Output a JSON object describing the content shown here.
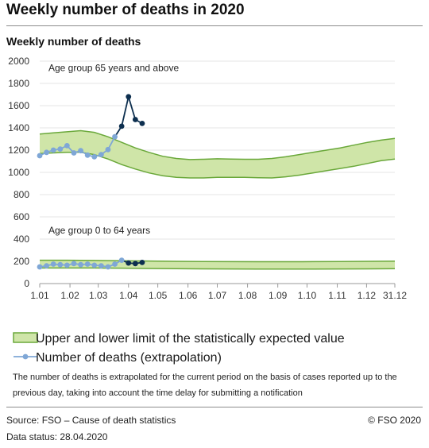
{
  "title": "Weekly number of deaths in 2020",
  "subtitle": "Weekly number of deaths",
  "legend": {
    "band_label": "Upper and lower limit of the statistically expected value",
    "series_label": "Number of deaths (extrapolation)"
  },
  "note": "The number of deaths is extrapolated for the current period on the basis of cases reported up to the previous day, taking into account the time delay for submitting a notification",
  "source": "Source: FSO – Cause of death statistics",
  "copyright": "© FSO 2020",
  "data_status": "Data status: 28.04.2020",
  "colors": {
    "band_fill": "#cfe5a8",
    "band_line": "#6aa83a",
    "series_light": "#7fa7d6",
    "series_dark": "#0d2f4f",
    "grid": "#e6e6e6"
  },
  "chart_data": {
    "type": "line",
    "ylim": [
      0,
      2000
    ],
    "yticks": [
      0,
      200,
      400,
      600,
      800,
      1000,
      1200,
      1400,
      1600,
      1800,
      2000
    ],
    "xlim": [
      1,
      53
    ],
    "xticks": [
      {
        "label": "1.01",
        "week": 1
      },
      {
        "label": "1.02",
        "week": 5.43
      },
      {
        "label": "1.03",
        "week": 9.57
      },
      {
        "label": "1.04",
        "week": 14
      },
      {
        "label": "1.05",
        "week": 18.29
      },
      {
        "label": "1.06",
        "week": 22.71
      },
      {
        "label": "1.07",
        "week": 27
      },
      {
        "label": "1.08",
        "week": 31.43
      },
      {
        "label": "1.09",
        "week": 35.86
      },
      {
        "label": "1.10",
        "week": 40.14
      },
      {
        "label": "1.11",
        "week": 44.57
      },
      {
        "label": "1.12",
        "week": 48.86
      },
      {
        "label": "31.12",
        "week": 53
      }
    ],
    "groups": [
      {
        "name": "Age group 65 years and above",
        "band": {
          "weeks": [
            1,
            3,
            5,
            7,
            9,
            11,
            13,
            15,
            17,
            19,
            21,
            23,
            25,
            27,
            29,
            31,
            33,
            35,
            37,
            39,
            41,
            43,
            45,
            47,
            49,
            51,
            53
          ],
          "upper": [
            1345,
            1355,
            1365,
            1375,
            1360,
            1320,
            1270,
            1220,
            1180,
            1145,
            1125,
            1115,
            1118,
            1122,
            1120,
            1118,
            1118,
            1125,
            1140,
            1160,
            1180,
            1200,
            1220,
            1245,
            1270,
            1290,
            1305
          ],
          "lower": [
            1170,
            1175,
            1180,
            1180,
            1160,
            1120,
            1070,
            1030,
            995,
            970,
            955,
            950,
            950,
            955,
            955,
            955,
            952,
            950,
            960,
            975,
            995,
            1015,
            1035,
            1055,
            1080,
            1105,
            1120
          ]
        },
        "series": {
          "weeks": [
            1,
            2,
            3,
            4,
            5,
            6,
            7,
            8,
            9,
            10,
            11,
            12,
            13,
            14,
            15,
            16,
            17
          ],
          "values": [
            1150,
            1180,
            1200,
            1210,
            1240,
            1175,
            1195,
            1155,
            1140,
            1160,
            1205,
            1320,
            1415,
            1680,
            1475,
            1440,
            null
          ],
          "extrapolated_from_week": 12
        }
      },
      {
        "name": "Age group 0 to 64 years",
        "band": {
          "weeks": [
            1,
            5,
            9,
            13,
            17,
            21,
            25,
            29,
            33,
            37,
            41,
            45,
            49,
            53
          ],
          "upper": [
            210,
            210,
            208,
            205,
            203,
            200,
            198,
            197,
            196,
            196,
            197,
            198,
            200,
            202
          ],
          "lower": [
            140,
            140,
            140,
            138,
            136,
            134,
            132,
            131,
            130,
            130,
            130,
            131,
            132,
            134
          ]
        },
        "series": {
          "weeks": [
            1,
            2,
            3,
            4,
            5,
            6,
            7,
            8,
            9,
            10,
            11,
            12,
            13,
            14,
            15,
            16,
            17
          ],
          "values": [
            150,
            160,
            175,
            170,
            165,
            180,
            170,
            175,
            165,
            160,
            150,
            175,
            210,
            185,
            180,
            190,
            null
          ],
          "extrapolated_from_week": 13
        }
      }
    ]
  }
}
